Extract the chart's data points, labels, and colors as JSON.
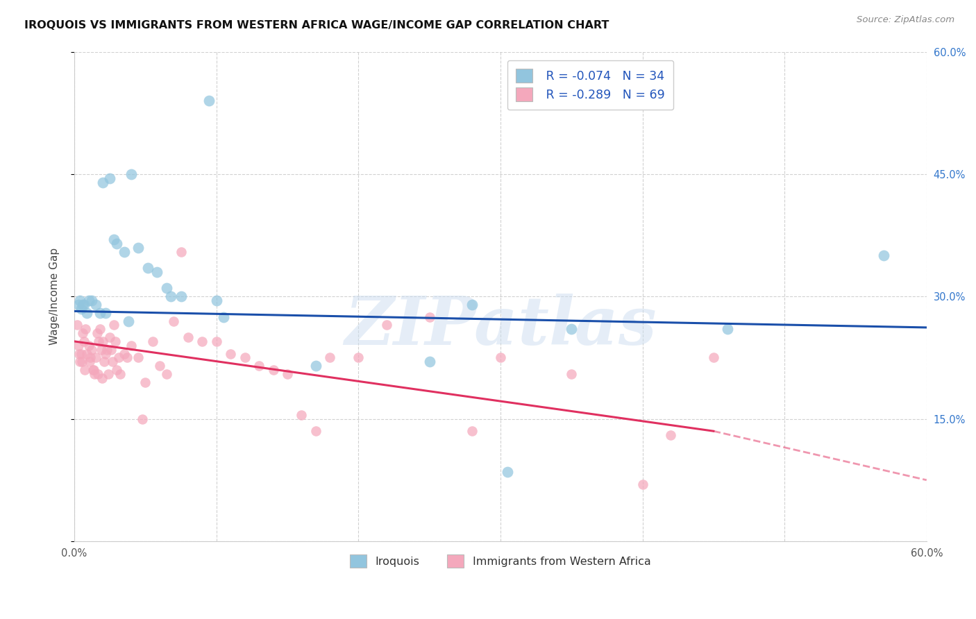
{
  "title": "IROQUOIS VS IMMIGRANTS FROM WESTERN AFRICA WAGE/INCOME GAP CORRELATION CHART",
  "source": "Source: ZipAtlas.com",
  "ylabel": "Wage/Income Gap",
  "legend_label1": "Iroquois",
  "legend_label2": "Immigrants from Western Africa",
  "R1": -0.074,
  "N1": 34,
  "R2": -0.289,
  "N2": 69,
  "color_blue": "#92c5de",
  "color_pink": "#f4a8bc",
  "color_blue_line": "#1a4faa",
  "color_pink_line": "#e03060",
  "watermark": "ZIPatlas",
  "watermark_color": "#ccddf0",
  "xlim": [
    0,
    60
  ],
  "ylim": [
    0,
    60
  ],
  "blue_trend_start_y": 28.2,
  "blue_trend_end_y": 26.2,
  "pink_trend_start_y": 24.5,
  "pink_trend_solid_end_x": 45,
  "pink_trend_solid_end_y": 13.5,
  "pink_trend_dash_end_x": 60,
  "pink_trend_dash_end_y": 7.5,
  "blue_x": [
    1.0,
    1.5,
    2.0,
    2.5,
    2.8,
    3.0,
    3.5,
    4.5,
    5.2,
    5.8,
    6.5,
    7.5,
    10.0,
    10.5,
    17.0,
    25.0,
    28.0,
    46.0,
    57.0,
    0.5,
    0.7,
    0.9,
    1.2,
    1.8,
    2.2,
    3.8,
    4.0,
    6.8,
    9.5,
    30.5,
    35.0,
    0.3,
    0.4,
    0.6
  ],
  "blue_y": [
    29.5,
    29.0,
    44.0,
    44.5,
    37.0,
    36.5,
    35.5,
    36.0,
    33.5,
    33.0,
    31.0,
    30.0,
    29.5,
    27.5,
    21.5,
    22.0,
    29.0,
    26.0,
    35.0,
    28.5,
    29.0,
    28.0,
    29.5,
    28.0,
    28.0,
    27.0,
    45.0,
    30.0,
    54.0,
    8.5,
    26.0,
    29.0,
    29.5,
    29.0
  ],
  "pink_x": [
    0.2,
    0.3,
    0.4,
    0.5,
    0.6,
    0.7,
    0.8,
    0.9,
    1.0,
    1.1,
    1.2,
    1.3,
    1.4,
    1.5,
    1.6,
    1.7,
    1.8,
    1.9,
    2.0,
    2.1,
    2.2,
    2.3,
    2.4,
    2.5,
    2.6,
    2.7,
    2.8,
    2.9,
    3.0,
    3.1,
    3.2,
    3.5,
    3.7,
    4.0,
    4.5,
    4.8,
    5.0,
    5.5,
    6.0,
    6.5,
    7.0,
    7.5,
    8.0,
    9.0,
    10.0,
    11.0,
    12.0,
    13.0,
    14.0,
    15.0,
    16.0,
    17.0,
    18.0,
    20.0,
    22.0,
    25.0,
    28.0,
    30.0,
    35.0,
    40.0,
    42.0,
    45.0,
    0.35,
    0.55,
    0.75,
    1.05,
    1.35,
    1.65,
    1.95
  ],
  "pink_y": [
    26.5,
    24.0,
    22.0,
    23.0,
    25.5,
    24.5,
    26.0,
    23.0,
    24.0,
    22.5,
    23.5,
    21.0,
    20.5,
    22.5,
    25.5,
    24.5,
    26.0,
    23.5,
    24.5,
    22.0,
    23.0,
    23.5,
    20.5,
    25.0,
    23.5,
    22.0,
    26.5,
    24.5,
    21.0,
    22.5,
    20.5,
    23.0,
    22.5,
    24.0,
    22.5,
    15.0,
    19.5,
    24.5,
    21.5,
    20.5,
    27.0,
    35.5,
    25.0,
    24.5,
    24.5,
    23.0,
    22.5,
    21.5,
    21.0,
    20.5,
    15.5,
    13.5,
    22.5,
    22.5,
    26.5,
    27.5,
    13.5,
    22.5,
    20.5,
    7.0,
    13.0,
    22.5,
    23.0,
    22.0,
    21.0,
    22.0,
    21.0,
    20.5,
    20.0
  ]
}
